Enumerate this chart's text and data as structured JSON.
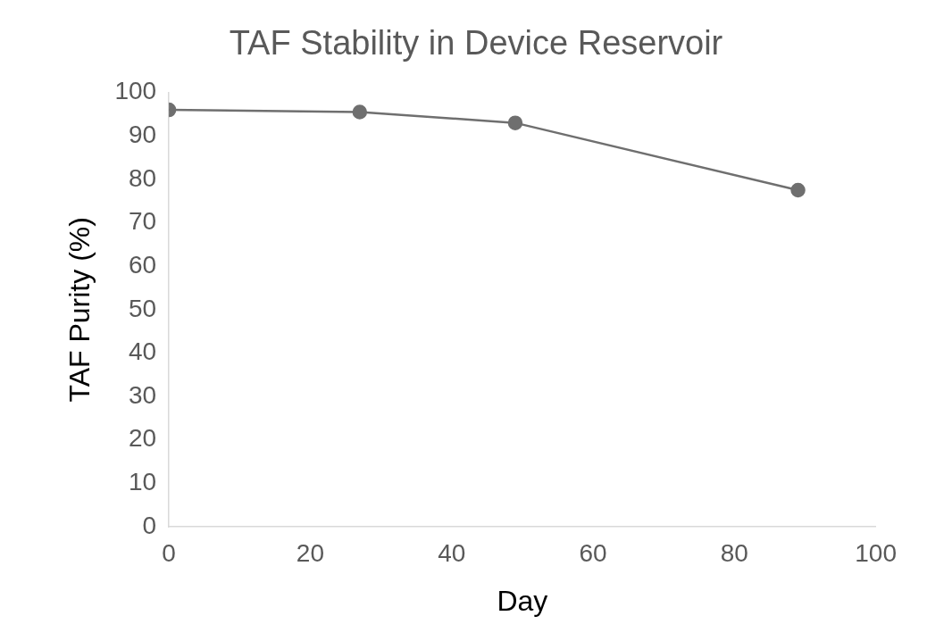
{
  "chart_data": {
    "type": "line",
    "title": "TAF Stability in Device Reservoir",
    "xlabel": "Day",
    "ylabel": "TAF Purity (%)",
    "x": [
      0,
      27,
      49,
      89
    ],
    "series": [
      {
        "color": "#6f6f6f",
        "values": [
          96,
          95.5,
          93,
          77.5
        ]
      }
    ],
    "xlim": [
      0,
      100
    ],
    "xticks": [
      0,
      20,
      40,
      60,
      80,
      100
    ],
    "ylim": [
      0,
      100
    ],
    "yticks": [
      0,
      10,
      20,
      30,
      40,
      50,
      60,
      70,
      80,
      90,
      100
    ],
    "grid": false,
    "legend": false,
    "marker": "circle",
    "line_style": "solid"
  }
}
